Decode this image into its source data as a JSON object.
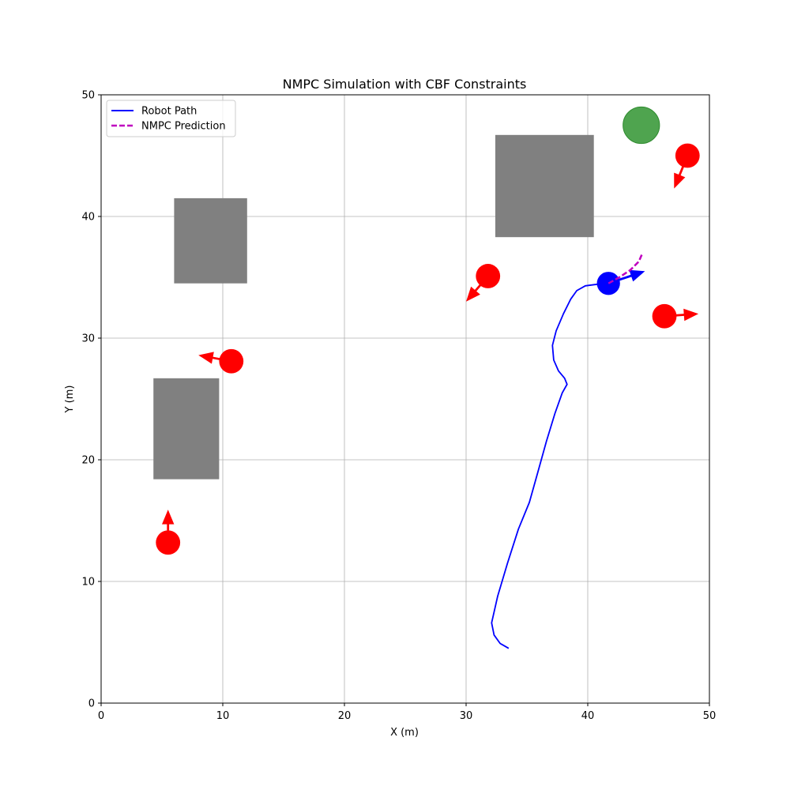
{
  "chart_data": {
    "type": "scatter",
    "title": "NMPC Simulation with CBF Constraints",
    "xlabel": "X (m)",
    "ylabel": "Y (m)",
    "xlim": [
      0,
      50
    ],
    "ylim": [
      0,
      50
    ],
    "xticks": [
      0,
      10,
      20,
      30,
      40,
      50
    ],
    "yticks": [
      0,
      10,
      20,
      30,
      40,
      50
    ],
    "grid": true,
    "legend": {
      "placement": "top-left",
      "entries": [
        {
          "label": "Robot Path",
          "color": "#0000ff",
          "style": "solid"
        },
        {
          "label": "NMPC Prediction",
          "color": "#bf00bf",
          "style": "dashed"
        }
      ]
    },
    "robot_path": {
      "color": "#0000ff",
      "points": [
        [
          33.5,
          4.5
        ],
        [
          32.8,
          4.9
        ],
        [
          32.3,
          5.6
        ],
        [
          32.1,
          6.6
        ],
        [
          32.6,
          8.8
        ],
        [
          33.4,
          11.5
        ],
        [
          34.3,
          14.3
        ],
        [
          35.2,
          16.5
        ],
        [
          35.9,
          19.0
        ],
        [
          36.6,
          21.5
        ],
        [
          37.3,
          23.8
        ],
        [
          37.9,
          25.5
        ],
        [
          38.3,
          26.2
        ],
        [
          38.1,
          26.7
        ],
        [
          37.6,
          27.3
        ],
        [
          37.2,
          28.2
        ],
        [
          37.1,
          29.4
        ],
        [
          37.4,
          30.6
        ],
        [
          38.0,
          32.0
        ],
        [
          38.6,
          33.2
        ],
        [
          39.1,
          33.9
        ],
        [
          39.8,
          34.3
        ],
        [
          40.6,
          34.4
        ],
        [
          41.7,
          34.5
        ]
      ]
    },
    "nmpc_prediction": {
      "color": "#bf00bf",
      "points": [
        [
          41.7,
          34.5
        ],
        [
          42.6,
          35.0
        ],
        [
          43.5,
          35.6
        ],
        [
          44.2,
          36.3
        ],
        [
          44.5,
          37.0
        ]
      ]
    },
    "robot": {
      "x": 41.7,
      "y": 34.5,
      "r": 0.95,
      "color": "#0000ff",
      "arrow_dx": 3.0,
      "arrow_dy": 1.0
    },
    "goal": {
      "x": 44.4,
      "y": 47.5,
      "r": 1.5,
      "color": "#3c9a3c"
    },
    "static_obstacles": [
      {
        "x0": 6.0,
        "x1": 12.0,
        "y0": 34.5,
        "y1": 41.5,
        "color": "#808080"
      },
      {
        "x0": 4.3,
        "x1": 9.7,
        "y0": 18.4,
        "y1": 26.7,
        "color": "#808080"
      },
      {
        "x0": 32.4,
        "x1": 40.5,
        "y0": 38.3,
        "y1": 46.7,
        "color": "#808080"
      }
    ],
    "dynamic_obstacles": [
      {
        "x": 5.5,
        "y": 13.2,
        "r": 1.0,
        "dx": 0.0,
        "dy": 2.7,
        "color": "#ff0000"
      },
      {
        "x": 10.7,
        "y": 28.1,
        "r": 1.0,
        "dx": -2.7,
        "dy": 0.5,
        "color": "#ff0000"
      },
      {
        "x": 31.8,
        "y": 35.1,
        "r": 1.0,
        "dx": -1.8,
        "dy": -2.1,
        "color": "#ff0000"
      },
      {
        "x": 46.3,
        "y": 31.8,
        "r": 1.0,
        "dx": 2.8,
        "dy": 0.2,
        "color": "#ff0000"
      },
      {
        "x": 48.2,
        "y": 45.0,
        "r": 1.0,
        "dx": -1.1,
        "dy": -2.7,
        "color": "#ff0000"
      }
    ]
  }
}
